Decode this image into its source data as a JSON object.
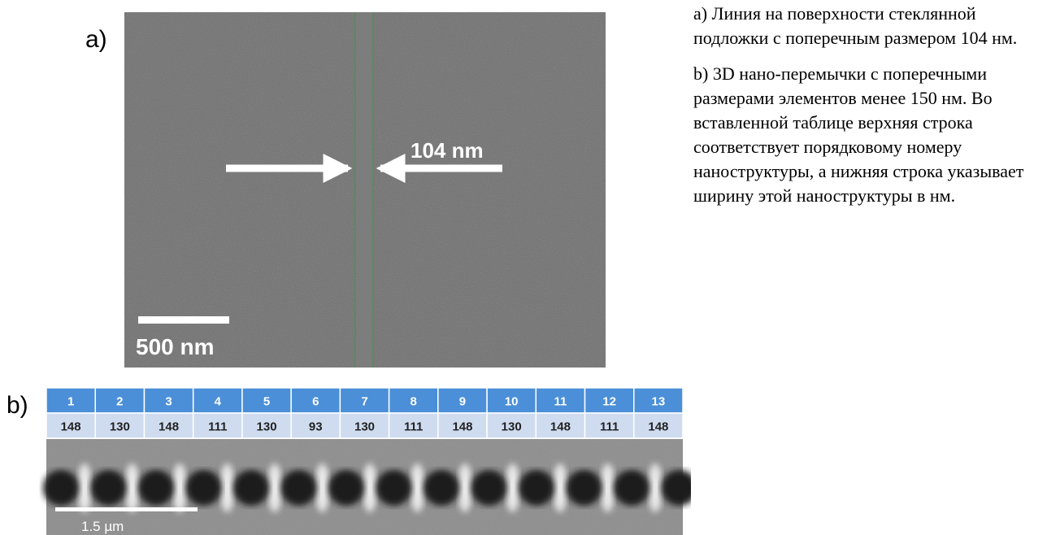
{
  "panel_a": {
    "label": "a)",
    "width_label": "104 nm",
    "scale_label": "500 nm"
  },
  "panel_b": {
    "label": "b)",
    "scale_label": "1.5 µm",
    "table": {
      "rows": [
        [
          1,
          2,
          3,
          4,
          5,
          6,
          7,
          8,
          9,
          10,
          11,
          12,
          13
        ],
        [
          148,
          130,
          148,
          111,
          130,
          93,
          130,
          111,
          148,
          130,
          148,
          111,
          148
        ]
      ]
    }
  },
  "caption": [
    "a) Линия на поверхности стеклянной подложки с поперечным размером 104 нм.",
    "b) 3D нано-перемычки с поперечными размерами элементов менее 150 нм. Во вставленной таблице верхняя строка соответствует порядковому номеру наноструктуры, а нижняя строка указывает ширину этой наноструктуры в нм."
  ]
}
